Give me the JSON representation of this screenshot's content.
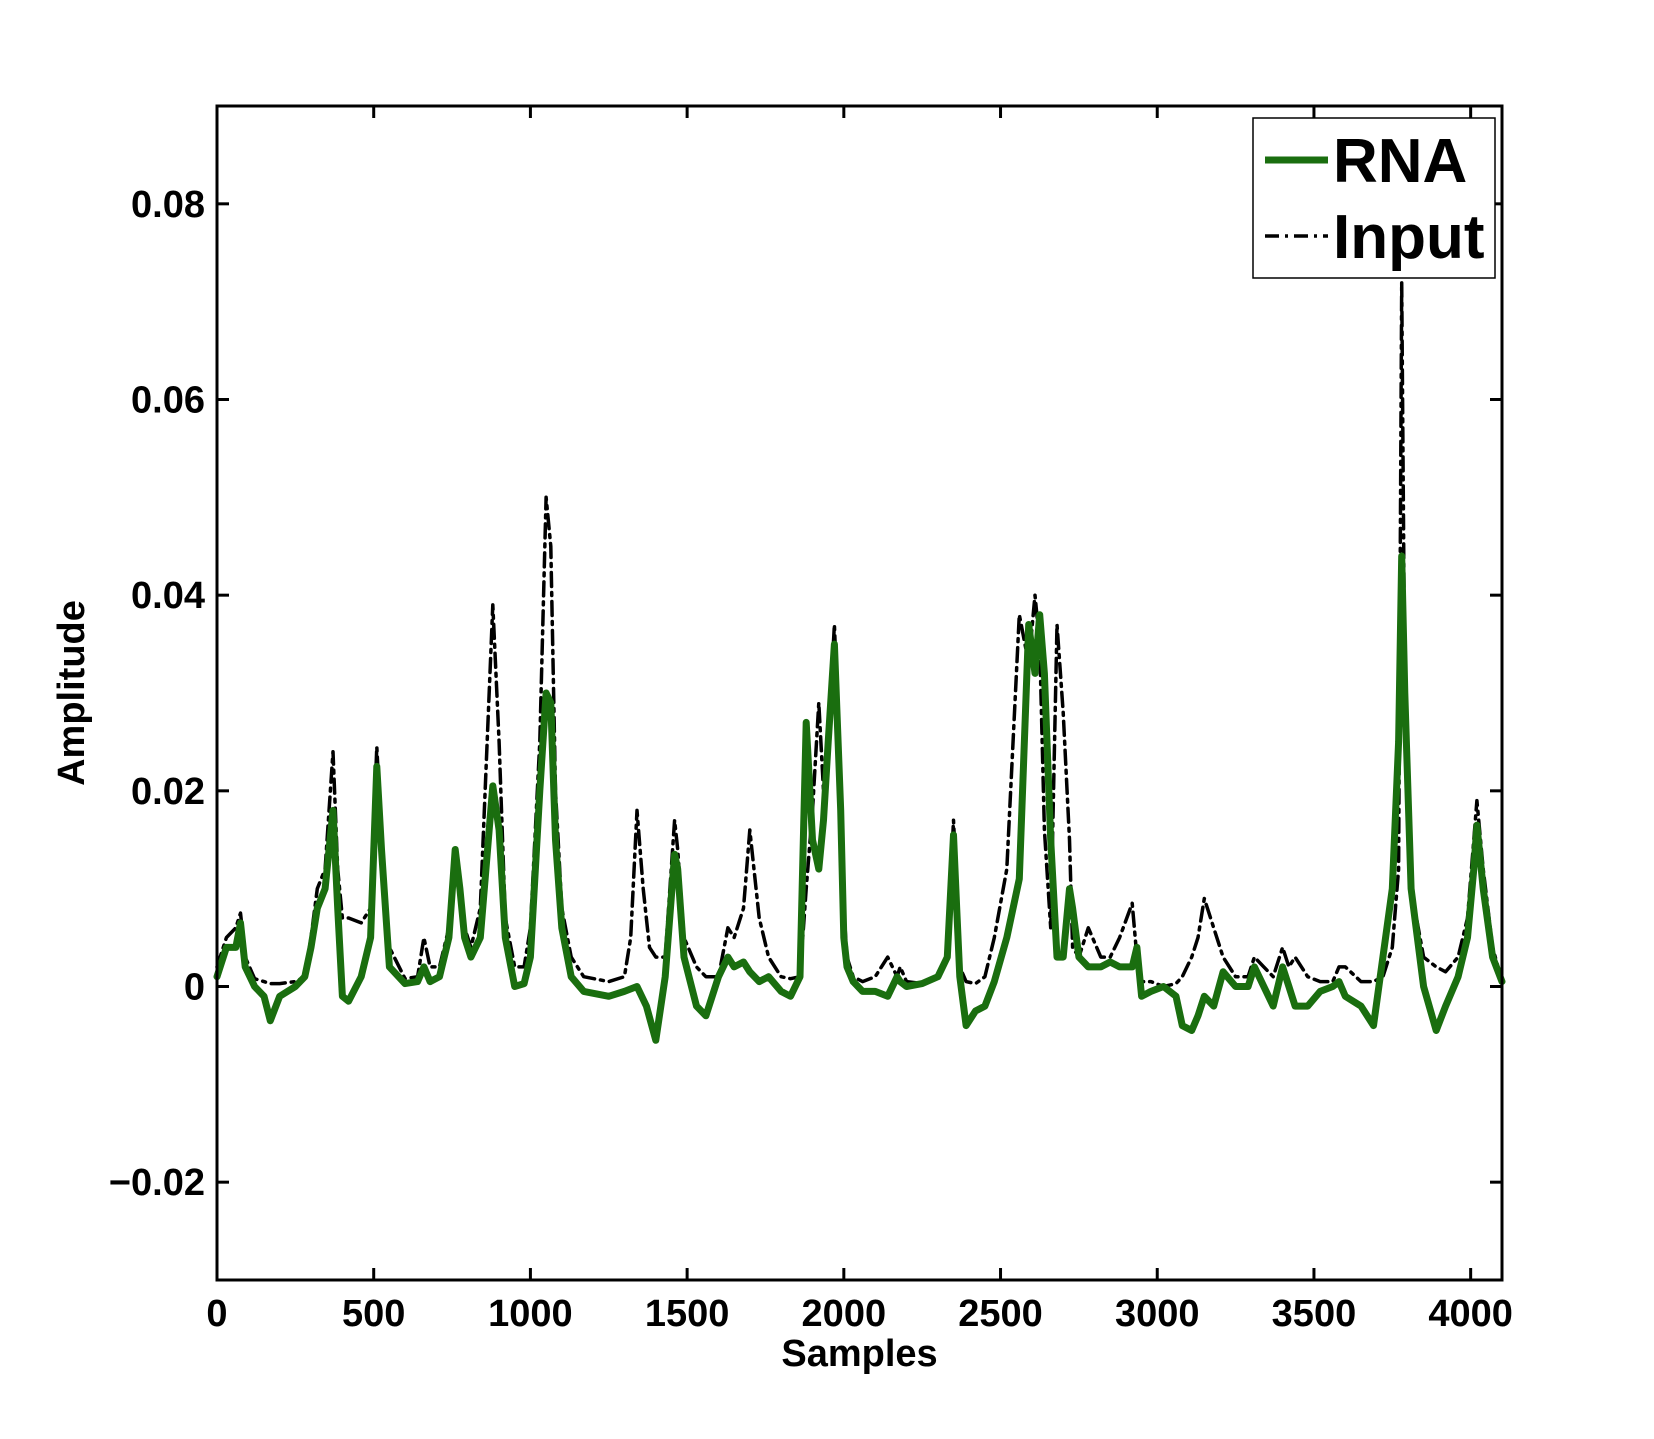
{
  "chart_data": {
    "type": "line",
    "xlabel": "Samples",
    "ylabel": "Amplitude",
    "xlim": [
      0,
      4100
    ],
    "ylim": [
      -0.03,
      0.09
    ],
    "xticks": [
      0,
      500,
      1000,
      1500,
      2000,
      2500,
      3000,
      3500,
      4000
    ],
    "xtick_labels": [
      "0",
      "500",
      "1000",
      "1500",
      "2000",
      "2500",
      "3000",
      "3500",
      "4000"
    ],
    "yticks": [
      -0.02,
      0,
      0.02,
      0.04,
      0.06,
      0.08
    ],
    "ytick_labels": [
      "−0.02",
      "0",
      "0.02",
      "0.04",
      "0.06",
      "0.08"
    ],
    "grid": false,
    "legend_position": "top-right",
    "series": [
      {
        "name": "RNA",
        "color": "#1a6e0f",
        "style": "solid",
        "x": [
          0,
          30,
          60,
          75,
          90,
          120,
          150,
          170,
          200,
          250,
          280,
          300,
          320,
          345,
          370,
          385,
          400,
          420,
          460,
          490,
          510,
          525,
          550,
          600,
          640,
          660,
          680,
          710,
          740,
          760,
          775,
          790,
          810,
          840,
          880,
          900,
          920,
          950,
          980,
          1000,
          1030,
          1050,
          1065,
          1080,
          1100,
          1130,
          1170,
          1250,
          1300,
          1340,
          1370,
          1400,
          1430,
          1460,
          1470,
          1490,
          1530,
          1560,
          1600,
          1630,
          1650,
          1680,
          1700,
          1730,
          1760,
          1800,
          1830,
          1860,
          1880,
          1900,
          1920,
          1935,
          1950,
          1970,
          1990,
          2000,
          2010,
          2030,
          2060,
          2100,
          2140,
          2170,
          2180,
          2200,
          2250,
          2300,
          2330,
          2350,
          2360,
          2370,
          2390,
          2420,
          2450,
          2480,
          2520,
          2560,
          2590,
          2610,
          2625,
          2640,
          2660,
          2680,
          2700,
          2720,
          2730,
          2750,
          2780,
          2820,
          2850,
          2880,
          2920,
          2935,
          2950,
          2980,
          3020,
          3060,
          3080,
          3110,
          3130,
          3150,
          3180,
          3210,
          3250,
          3290,
          3310,
          3340,
          3370,
          3400,
          3420,
          3440,
          3480,
          3520,
          3560,
          3580,
          3600,
          3650,
          3690,
          3720,
          3750,
          3770,
          3780,
          3790,
          3810,
          3850,
          3890,
          3920,
          3960,
          3990,
          4010,
          4020,
          4040,
          4070,
          4100
        ],
        "y": [
          0.001,
          0.004,
          0.004,
          0.0065,
          0.002,
          0.0,
          -0.001,
          -0.0035,
          -0.001,
          0.0,
          0.001,
          0.004,
          0.008,
          0.01,
          0.018,
          0.008,
          -0.001,
          -0.0015,
          0.001,
          0.005,
          0.0225,
          0.014,
          0.002,
          0.0003,
          0.0005,
          0.002,
          0.0005,
          0.001,
          0.005,
          0.014,
          0.01,
          0.005,
          0.003,
          0.005,
          0.0205,
          0.016,
          0.005,
          0.0,
          0.0003,
          0.003,
          0.02,
          0.03,
          0.029,
          0.015,
          0.006,
          0.001,
          -0.0005,
          -0.001,
          -0.0005,
          0.0,
          -0.002,
          -0.0055,
          0.001,
          0.0135,
          0.012,
          0.003,
          -0.002,
          -0.003,
          0.001,
          0.003,
          0.002,
          0.0025,
          0.0015,
          0.0005,
          0.001,
          -0.0005,
          -0.001,
          0.001,
          0.027,
          0.015,
          0.012,
          0.017,
          0.025,
          0.035,
          0.018,
          0.005,
          0.002,
          0.0005,
          -0.0005,
          -0.0005,
          -0.001,
          0.001,
          0.0005,
          0.0,
          0.0003,
          0.001,
          0.003,
          0.0155,
          0.008,
          0.001,
          -0.004,
          -0.0025,
          -0.002,
          0.0005,
          0.005,
          0.011,
          0.037,
          0.032,
          0.038,
          0.032,
          0.015,
          0.003,
          0.003,
          0.01,
          0.008,
          0.003,
          0.002,
          0.002,
          0.0025,
          0.002,
          0.002,
          0.004,
          -0.001,
          -0.0005,
          0.0,
          -0.001,
          -0.004,
          -0.0045,
          -0.003,
          -0.001,
          -0.002,
          0.0015,
          0.0,
          0.0,
          0.002,
          0.0,
          -0.002,
          0.002,
          0.0,
          -0.002,
          -0.002,
          -0.0005,
          0.0,
          0.0005,
          -0.001,
          -0.002,
          -0.004,
          0.003,
          0.01,
          0.025,
          0.044,
          0.03,
          0.01,
          0.0,
          -0.0045,
          -0.002,
          0.001,
          0.005,
          0.012,
          0.0165,
          0.01,
          0.003,
          0.0005
        ]
      },
      {
        "name": "Input",
        "color": "#000000",
        "style": "dash-dot",
        "x": [
          0,
          30,
          60,
          75,
          90,
          120,
          150,
          170,
          200,
          250,
          280,
          300,
          320,
          345,
          370,
          385,
          400,
          420,
          460,
          490,
          510,
          525,
          550,
          600,
          640,
          660,
          680,
          710,
          740,
          760,
          775,
          790,
          810,
          840,
          880,
          900,
          920,
          950,
          980,
          1000,
          1030,
          1050,
          1065,
          1080,
          1100,
          1130,
          1170,
          1250,
          1300,
          1320,
          1340,
          1360,
          1380,
          1400,
          1430,
          1460,
          1470,
          1490,
          1530,
          1560,
          1600,
          1630,
          1650,
          1680,
          1700,
          1730,
          1760,
          1800,
          1830,
          1860,
          1880,
          1900,
          1920,
          1935,
          1950,
          1970,
          1990,
          2000,
          2010,
          2030,
          2060,
          2100,
          2140,
          2170,
          2180,
          2200,
          2250,
          2300,
          2330,
          2350,
          2360,
          2370,
          2390,
          2420,
          2450,
          2480,
          2520,
          2560,
          2590,
          2610,
          2625,
          2640,
          2660,
          2680,
          2700,
          2720,
          2730,
          2750,
          2780,
          2820,
          2850,
          2880,
          2920,
          2935,
          2950,
          2980,
          3020,
          3060,
          3080,
          3110,
          3130,
          3150,
          3180,
          3210,
          3250,
          3290,
          3310,
          3340,
          3370,
          3400,
          3420,
          3440,
          3480,
          3520,
          3560,
          3580,
          3600,
          3650,
          3690,
          3720,
          3750,
          3770,
          3780,
          3790,
          3810,
          3850,
          3890,
          3920,
          3960,
          3990,
          4010,
          4020,
          4040,
          4070,
          4100
        ],
        "y": [
          0.002,
          0.005,
          0.006,
          0.0075,
          0.003,
          0.0008,
          0.0005,
          0.0003,
          0.0003,
          0.0005,
          0.001,
          0.005,
          0.01,
          0.012,
          0.024,
          0.012,
          0.007,
          0.007,
          0.0065,
          0.008,
          0.0245,
          0.015,
          0.004,
          0.0008,
          0.001,
          0.005,
          0.002,
          0.002,
          0.006,
          0.014,
          0.01,
          0.006,
          0.004,
          0.008,
          0.039,
          0.025,
          0.007,
          0.002,
          0.002,
          0.006,
          0.025,
          0.05,
          0.045,
          0.02,
          0.008,
          0.003,
          0.001,
          0.0005,
          0.001,
          0.005,
          0.018,
          0.01,
          0.004,
          0.003,
          0.003,
          0.017,
          0.014,
          0.005,
          0.002,
          0.001,
          0.001,
          0.006,
          0.005,
          0.008,
          0.016,
          0.007,
          0.003,
          0.001,
          0.0008,
          0.001,
          0.01,
          0.018,
          0.029,
          0.02,
          0.025,
          0.037,
          0.02,
          0.008,
          0.003,
          0.001,
          0.0005,
          0.001,
          0.003,
          0.001,
          0.002,
          0.0005,
          0.0003,
          0.001,
          0.003,
          0.017,
          0.01,
          0.002,
          0.0005,
          0.0003,
          0.001,
          0.005,
          0.012,
          0.038,
          0.033,
          0.04,
          0.035,
          0.016,
          0.006,
          0.037,
          0.028,
          0.015,
          0.004,
          0.003,
          0.006,
          0.003,
          0.003,
          0.005,
          0.0085,
          0.003,
          0.0005,
          0.0005,
          0.0,
          0.0003,
          0.001,
          0.003,
          0.005,
          0.009,
          0.006,
          0.003,
          0.001,
          0.001,
          0.003,
          0.002,
          0.001,
          0.004,
          0.002,
          0.003,
          0.001,
          0.0005,
          0.0005,
          0.002,
          0.002,
          0.0005,
          0.0005,
          0.001,
          0.004,
          0.012,
          0.072,
          0.03,
          0.01,
          0.003,
          0.002,
          0.0015,
          0.003,
          0.007,
          0.015,
          0.019,
          0.012,
          0.004,
          0.0005
        ]
      }
    ]
  }
}
